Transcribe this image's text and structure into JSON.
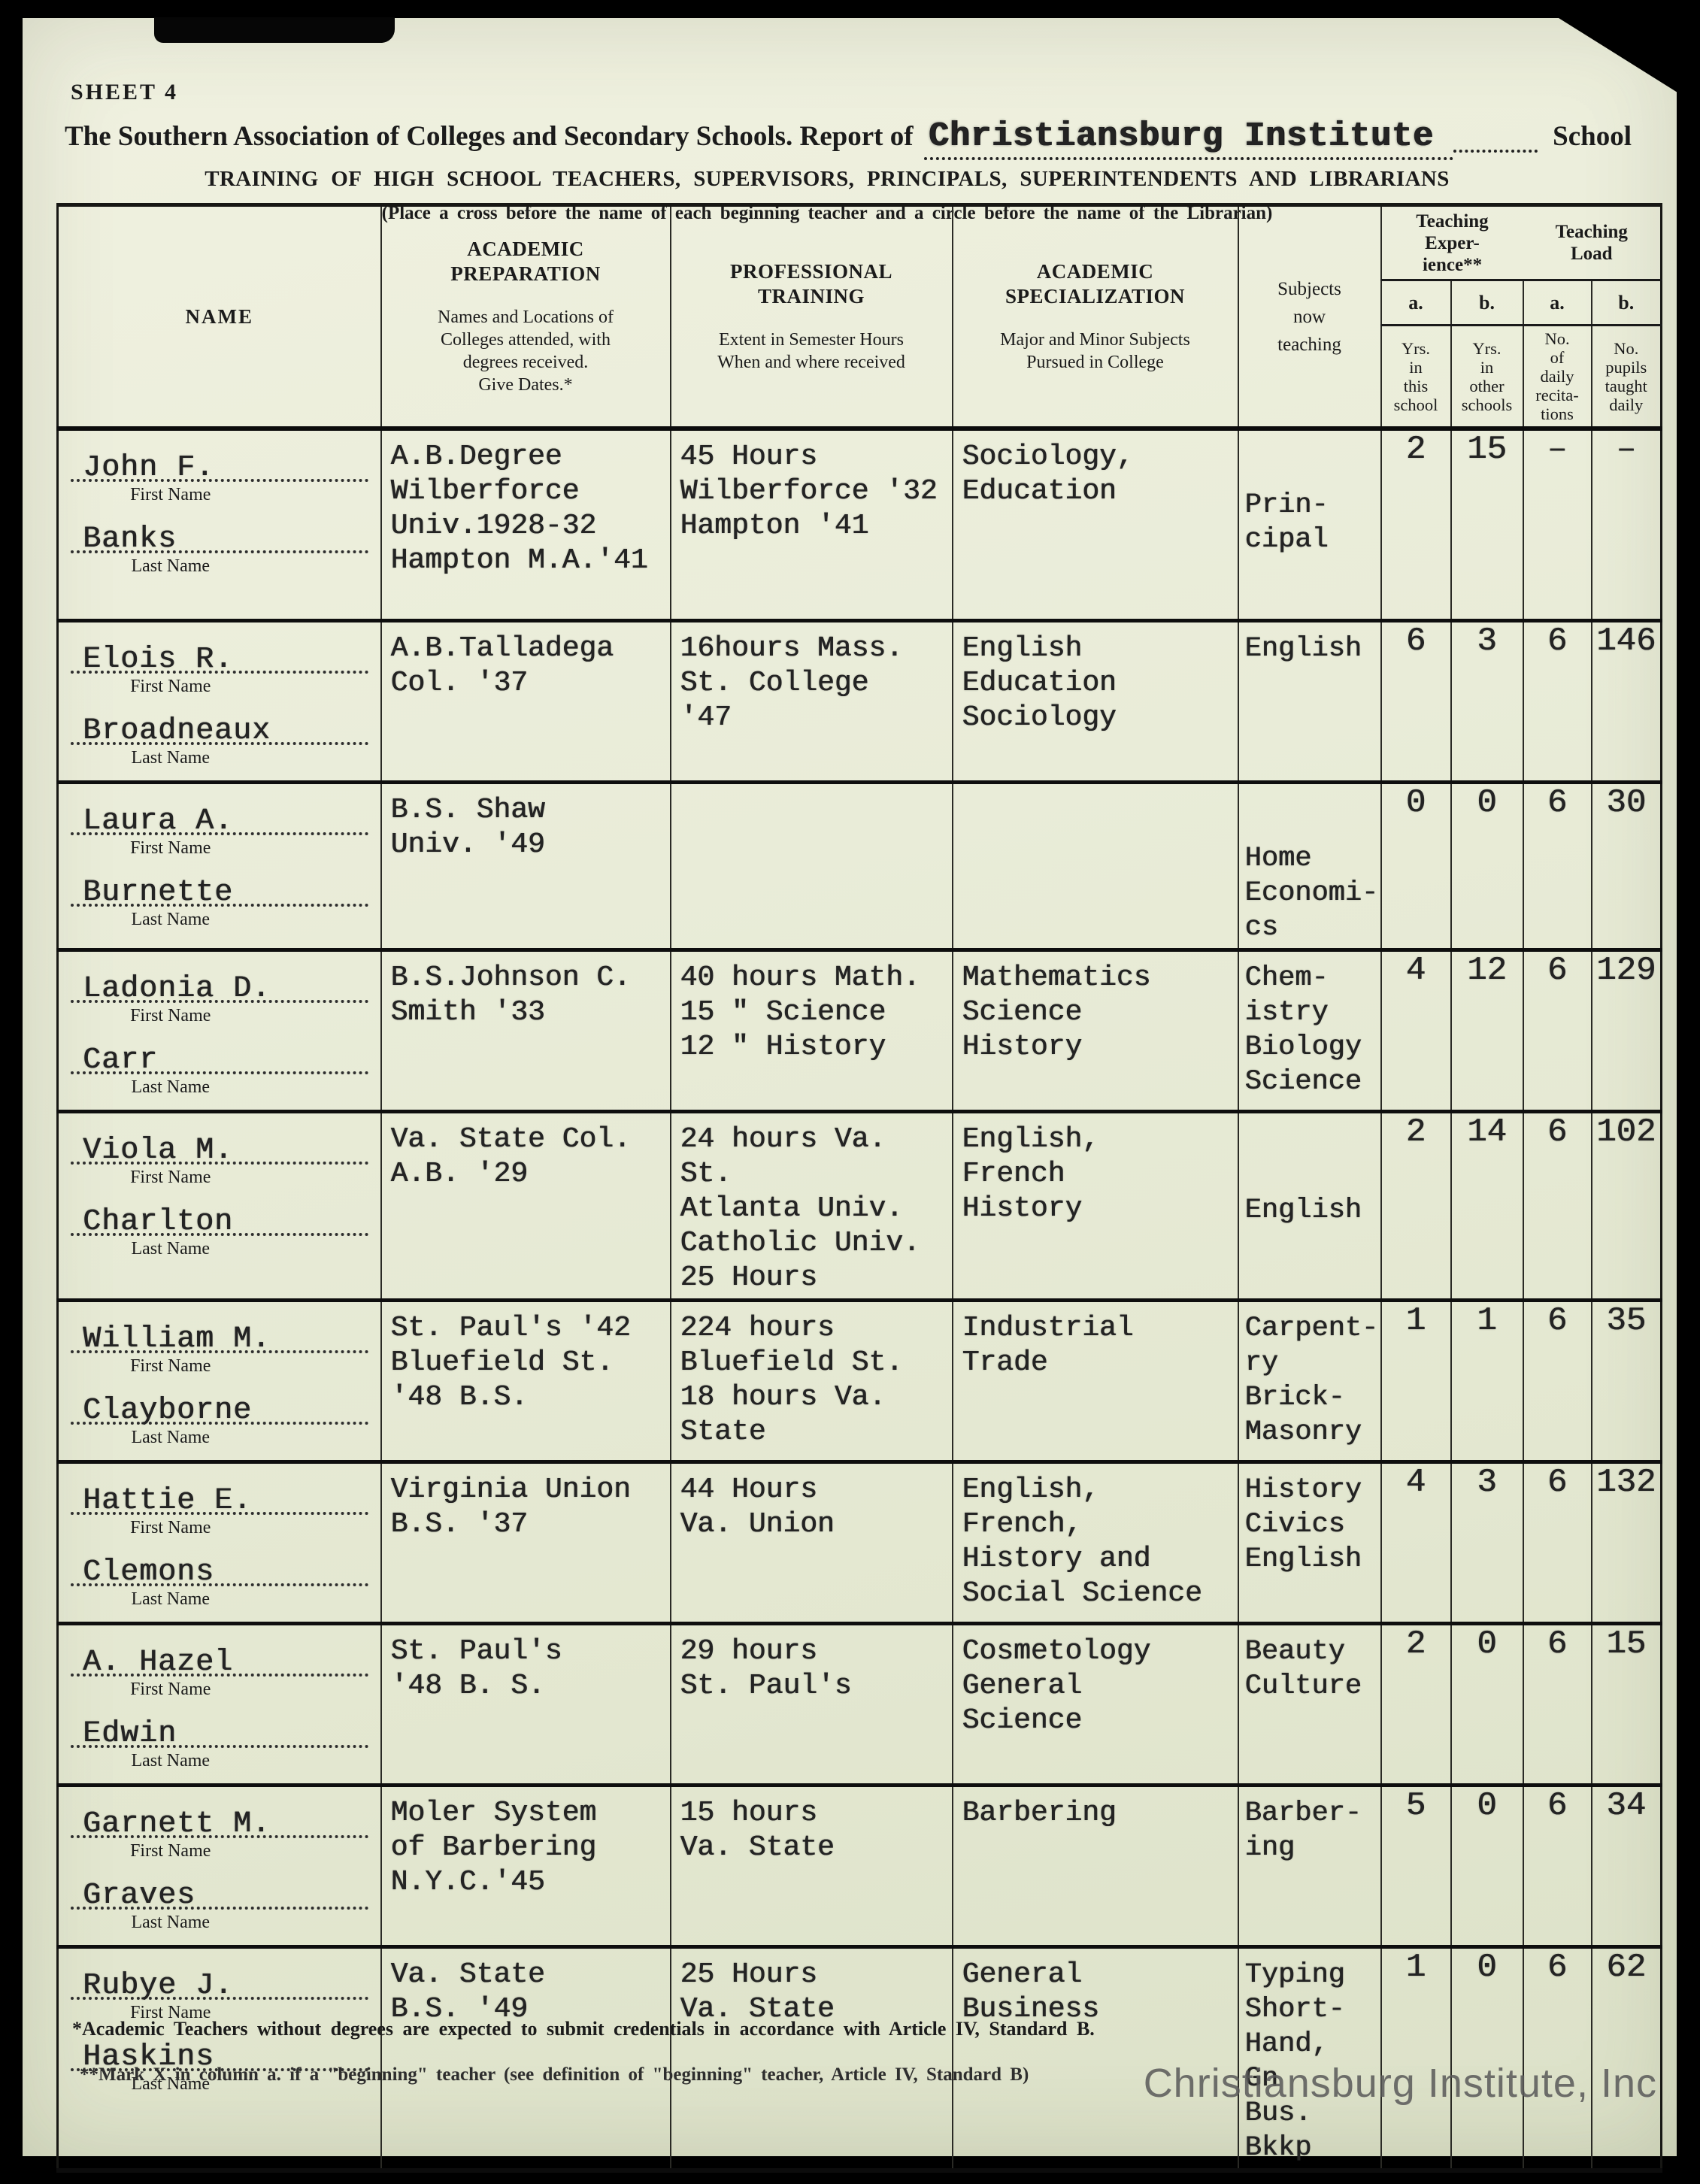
{
  "colors": {
    "background": "#000000",
    "paper": "#e9ecd8",
    "ink": "#1b1b1b",
    "typed_ink": "#232323",
    "watermark": "#6a6a6a"
  },
  "page": {
    "sheet_label": "SHEET 4",
    "title_prefix": "The Southern Association of Colleges and Secondary Schools. Report of",
    "school_name": "Christiansburg Institute",
    "title_suffix": "School",
    "subtitle": "TRAINING OF HIGH SCHOOL TEACHERS, SUPERVISORS, PRINCIPALS, SUPERINTENDENTS AND LIBRARIANS",
    "instruction": "(Place a cross before the name of each beginning teacher and a circle before the name of the Librarian)",
    "footnote_1": "*Academic Teachers without degrees are expected to submit credentials in accordance with Article IV, Standard B.",
    "footnote_2": "**Mark X in column a. if a \"beginning\" teacher (see definition of \"beginning\" teacher, Article IV, Standard B)",
    "watermark": "Christiansburg Institute, Inc"
  },
  "table": {
    "headers": {
      "name": "NAME",
      "first_name_label": "First Name",
      "last_name_label": "Last Name",
      "prep_title": "ACADEMIC\nPREPARATION",
      "prep_desc": "Names and Locations of\nColleges attended, with\ndegrees received.\nGive Dates.*",
      "training_title": "PROFESSIONAL\nTRAINING",
      "training_desc": "Extent in Semester Hours\nWhen and where received",
      "spec_title": "ACADEMIC\nSPECIALIZATION",
      "spec_desc": "Major and Minor Subjects\nPursued in College",
      "subjects": "Subjects\nnow\nteaching",
      "experience_title": "Teaching\nExper-\nience**",
      "load_title": "Teaching\nLoad",
      "col_a": "a.",
      "col_b": "b.",
      "exp_a_desc": "Yrs.\nin\nthis\nschool",
      "exp_b_desc": "Yrs.\nin\nother\nschools",
      "load_a_desc": "No.\nof\ndaily\nrecita-\ntions",
      "load_b_desc": "No.\npupils\ntaught\ndaily"
    },
    "rows": [
      {
        "first": "John F.",
        "last": "Banks",
        "prep": "A.B.Degree\nWilberforce\nUniv.1928-32\nHampton M.A.'41",
        "training": "45 Hours\nWilberforce '32\nHampton '41",
        "spec": "Sociology,\nEducation",
        "subjects": "Prin-\ncipal",
        "exp_a": "2",
        "exp_b": "15",
        "load_a": "–",
        "load_b": "–"
      },
      {
        "first": "Elois R.",
        "last": "Broadneaux",
        "prep": "A.B.Talladega\nCol. '37",
        "training": "16hours Mass.\nSt. College\n'47",
        "spec": "English\nEducation\nSociology",
        "subjects": "English",
        "exp_a": "6",
        "exp_b": "3",
        "load_a": "6",
        "load_b": "146"
      },
      {
        "first": "Laura A.",
        "last": "Burnette",
        "prep": "B.S. Shaw\nUniv. '49",
        "training": "",
        "spec": "",
        "subjects": "Home\nEconomi-\ncs",
        "exp_a": "0",
        "exp_b": "0",
        "load_a": "6",
        "load_b": "30"
      },
      {
        "first": "Ladonia D.",
        "last": "Carr",
        "prep": "B.S.Johnson C.\nSmith '33",
        "training": "40 hours Math.\n15  \"  Science\n12  \"  History",
        "spec": "Mathematics\nScience\nHistory",
        "subjects": "Chem-\nistry\nBiology\nScience",
        "exp_a": "4",
        "exp_b": "12",
        "load_a": "6",
        "load_b": "129"
      },
      {
        "first": "Viola M.",
        "last": "Charlton",
        "prep": "Va. State Col.\nA.B. '29",
        "training": "24 hours Va. St.\nAtlanta Univ.\nCatholic Univ.\n25 Hours",
        "spec": "English,\nFrench\nHistory",
        "subjects": "English",
        "exp_a": "2",
        "exp_b": "14",
        "load_a": "6",
        "load_b": "102"
      },
      {
        "first": "William M.",
        "last": "Clayborne",
        "prep": "St. Paul's '42\nBluefield St.\n'48 B.S.",
        "training": "224 hours\nBluefield St.\n18 hours Va.\nState",
        "spec": "Industrial\nTrade",
        "subjects": "Carpent-\nry\nBrick-\nMasonry",
        "exp_a": "1",
        "exp_b": "1",
        "load_a": "6",
        "load_b": "35"
      },
      {
        "first": "Hattie E.",
        "last": "Clemons",
        "prep": "Virginia Union\nB.S. '37",
        "training": "44 Hours\nVa. Union",
        "spec": "English,\nFrench,\nHistory and\nSocial Science",
        "subjects": "History\nCivics\nEnglish",
        "exp_a": "4",
        "exp_b": "3",
        "load_a": "6",
        "load_b": "132"
      },
      {
        "first": "A. Hazel",
        "last": "Edwin",
        "prep": "St. Paul's\n'48 B. S.",
        "training": "29 hours\nSt. Paul's",
        "spec": "Cosmetology\nGeneral\nScience",
        "subjects": "Beauty\nCulture",
        "exp_a": "2",
        "exp_b": "0",
        "load_a": "6",
        "load_b": "15"
      },
      {
        "first": "Garnett M.",
        "last": "Graves",
        "prep": "Moler System\nof Barbering\nN.Y.C.'45",
        "training": "15 hours\nVa. State",
        "spec": "Barbering",
        "subjects": "Barber-\ning",
        "exp_a": "5",
        "exp_b": "0",
        "load_a": "6",
        "load_b": "34"
      },
      {
        "first": "Rubye J.",
        "last": "Haskins",
        "prep": "Va. State\nB.S. '49",
        "training": "25 Hours\nVa. State",
        "spec": "General\nBusiness",
        "subjects": "Typing\nShort-\nHand, Gn\nBus. Bkkp",
        "exp_a": "1",
        "exp_b": "0",
        "load_a": "6",
        "load_b": "62"
      }
    ]
  }
}
